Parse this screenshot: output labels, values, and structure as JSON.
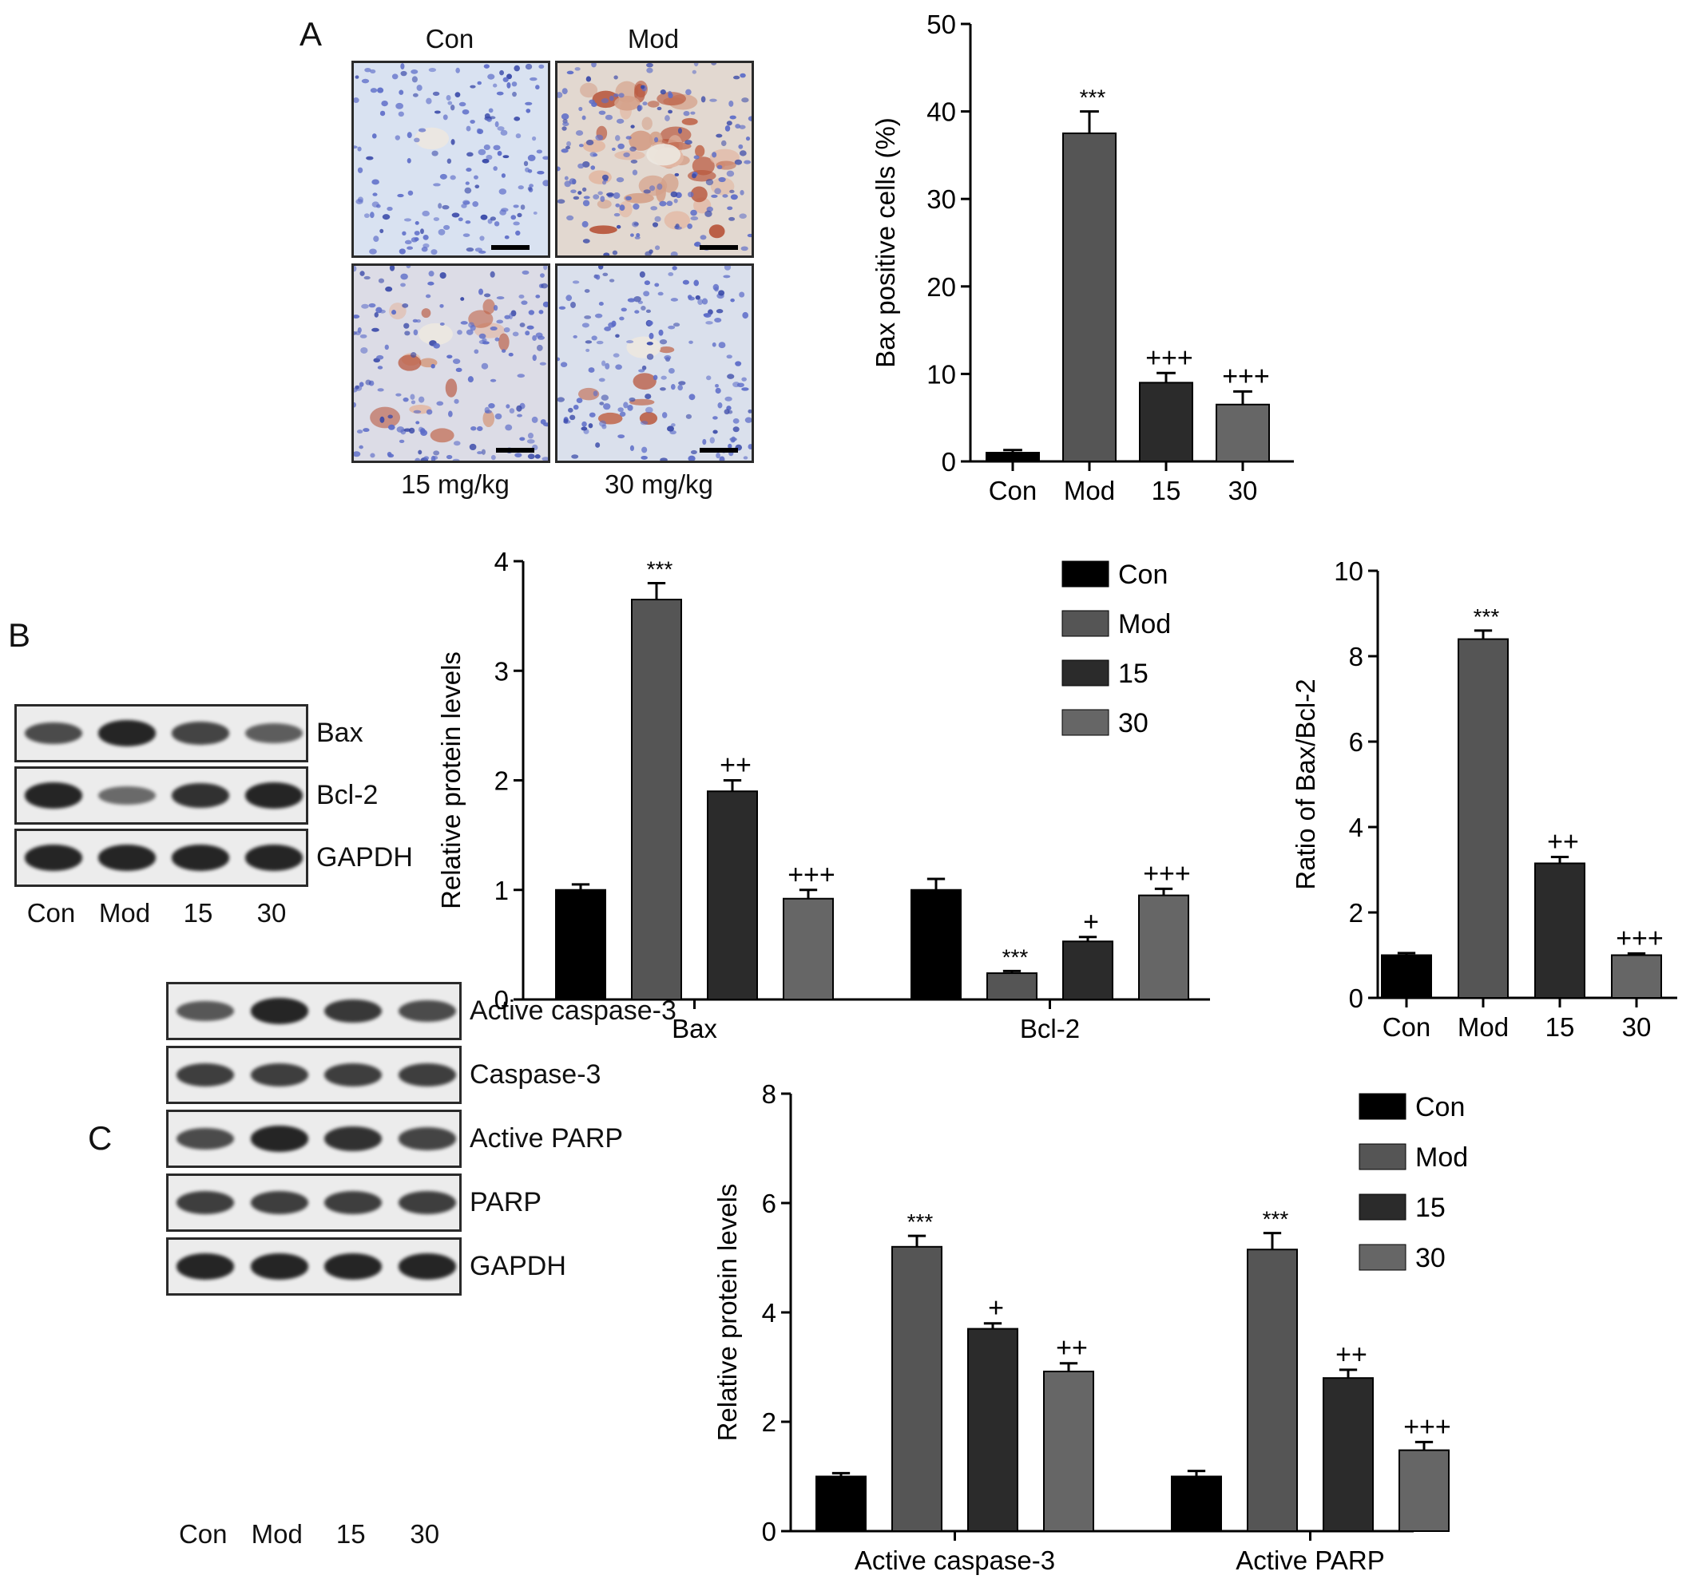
{
  "panels": {
    "A": {
      "letter": "A",
      "micro_labels_top": [
        "Con",
        "Mod"
      ],
      "micro_labels_bottom": [
        "15 mg/kg",
        "30 mg/kg"
      ]
    },
    "B": {
      "letter": "B",
      "blot_rows": [
        "Bax",
        "Bcl-2",
        "GAPDH"
      ],
      "lanes": [
        "Con",
        "Mod",
        "15",
        "30"
      ],
      "band_intensity": {
        "Bax": [
          0.7,
          1.0,
          0.75,
          0.55
        ],
        "Bcl-2": [
          1.0,
          0.45,
          0.9,
          1.0
        ],
        "GAPDH": [
          1.0,
          1.0,
          1.0,
          1.0
        ]
      }
    },
    "C": {
      "letter": "C",
      "blot_rows": [
        "Active caspase-3",
        "Caspase-3",
        "Active PARP",
        "PARP",
        "GAPDH"
      ],
      "lanes": [
        "Con",
        "Mod",
        "15",
        "30"
      ],
      "band_intensity": {
        "Active caspase-3": [
          0.6,
          1.0,
          0.85,
          0.7
        ],
        "Caspase-3": [
          0.8,
          0.8,
          0.8,
          0.8
        ],
        "Active PARP": [
          0.7,
          1.0,
          0.9,
          0.75
        ],
        "PARP": [
          0.8,
          0.8,
          0.8,
          0.8
        ],
        "GAPDH": [
          1.0,
          1.0,
          1.0,
          1.0
        ]
      }
    }
  },
  "colors": {
    "Con": "#000000",
    "Mod": "#555555",
    "15": "#2b2b2b",
    "30": "#666666"
  },
  "chart_data": [
    {
      "id": "bax-positive",
      "type": "bar",
      "categories": [
        "Con",
        "Mod",
        "15",
        "30"
      ],
      "values": [
        1,
        37.5,
        9,
        6.5
      ],
      "errors": [
        0.3,
        2.5,
        1.1,
        1.5
      ],
      "annotations": [
        "",
        "***",
        "+++",
        "+++"
      ],
      "ylabel": "Bax positive cells (%)",
      "ylim": [
        0,
        50
      ],
      "yticks": [
        0,
        10,
        20,
        30,
        40,
        50
      ],
      "bar_colors": [
        "#000000",
        "#555555",
        "#2b2b2b",
        "#666666"
      ]
    },
    {
      "id": "bax-bcl2-levels",
      "type": "bar",
      "categories": [
        "Bax",
        "Bcl-2"
      ],
      "series": [
        {
          "name": "Con",
          "values": [
            1.0,
            1.0
          ],
          "errors": [
            0.05,
            0.1
          ],
          "annotations": [
            "",
            ""
          ]
        },
        {
          "name": "Mod",
          "values": [
            3.65,
            0.24
          ],
          "errors": [
            0.15,
            0.02
          ],
          "annotations": [
            "***",
            "***"
          ]
        },
        {
          "name": "15",
          "values": [
            1.9,
            0.53
          ],
          "errors": [
            0.1,
            0.04
          ],
          "annotations": [
            "++",
            "+"
          ]
        },
        {
          "name": "30",
          "values": [
            0.92,
            0.95
          ],
          "errors": [
            0.08,
            0.06
          ],
          "annotations": [
            "+++",
            "+++"
          ]
        }
      ],
      "ylabel": "Relative protein levels",
      "ylim": [
        0,
        4
      ],
      "yticks": [
        0,
        1,
        2,
        3,
        4
      ],
      "legend": "top-right"
    },
    {
      "id": "bax-bcl2-ratio",
      "type": "bar",
      "categories": [
        "Con",
        "Mod",
        "15",
        "30"
      ],
      "values": [
        1.0,
        8.4,
        3.15,
        1.0
      ],
      "errors": [
        0.05,
        0.2,
        0.15,
        0.04
      ],
      "annotations": [
        "",
        "***",
        "++",
        "+++"
      ],
      "ylabel": "Ratio of Bax/Bcl-2",
      "ylim": [
        0,
        10
      ],
      "yticks": [
        0,
        2,
        4,
        6,
        8,
        10
      ],
      "bar_colors": [
        "#000000",
        "#555555",
        "#2b2b2b",
        "#666666"
      ]
    },
    {
      "id": "caspase-parp-levels",
      "type": "bar",
      "categories": [
        "Active caspase-3",
        "Active PARP"
      ],
      "series": [
        {
          "name": "Con",
          "values": [
            1.0,
            1.0
          ],
          "errors": [
            0.06,
            0.1
          ],
          "annotations": [
            "",
            ""
          ]
        },
        {
          "name": "Mod",
          "values": [
            5.2,
            5.15
          ],
          "errors": [
            0.2,
            0.3
          ],
          "annotations": [
            "***",
            "***"
          ]
        },
        {
          "name": "15",
          "values": [
            3.7,
            2.8
          ],
          "errors": [
            0.1,
            0.15
          ],
          "annotations": [
            "+",
            "++"
          ]
        },
        {
          "name": "30",
          "values": [
            2.92,
            1.48
          ],
          "errors": [
            0.15,
            0.15
          ],
          "annotations": [
            "++",
            "+++"
          ]
        }
      ],
      "ylabel": "Relative protein levels",
      "ylim": [
        0,
        8
      ],
      "yticks": [
        0,
        2,
        4,
        6,
        8
      ],
      "legend": "top-right"
    }
  ]
}
